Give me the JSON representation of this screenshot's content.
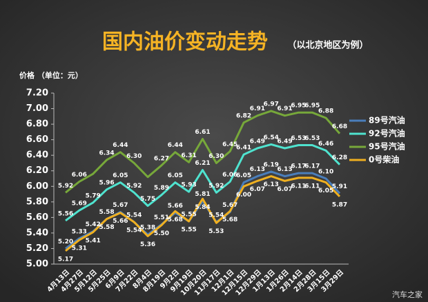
{
  "chart_data": {
    "type": "line",
    "title": "国内油价变动走势",
    "subtitle": "（以北京地区为例）",
    "y_label": "价格 （单位：元）",
    "watermark": "汽车之家",
    "categories": [
      "4月13日",
      "4月27日",
      "5月12日",
      "5月25日",
      "6月9日",
      "7月22日",
      "8月4日",
      "8月19日",
      "9月2日",
      "9月19日",
      "10月20日",
      "11月17日",
      "12月1日",
      "12月15日",
      "12月29日",
      "1月13日",
      "1月26日",
      "2月14日",
      "2月28日",
      "3月15日",
      "3月29日"
    ],
    "ylim": [
      5,
      7.2
    ],
    "yticks": [
      {
        "value": 5,
        "label": "5.00"
      },
      {
        "value": 5.2,
        "label": "5.20"
      },
      {
        "value": 5.4,
        "label": "5.40"
      },
      {
        "value": 5.6,
        "label": "5.60"
      },
      {
        "value": 5.8,
        "label": "5.80"
      },
      {
        "value": 6,
        "label": "6.00"
      },
      {
        "value": 6.2,
        "label": "6.20"
      },
      {
        "value": 6.4,
        "label": "6.40"
      },
      {
        "value": 6.6,
        "label": "6.60"
      },
      {
        "value": 6.8,
        "label": "6.80"
      },
      {
        "value": 7,
        "label": "7.00"
      },
      {
        "value": 7.2,
        "label": "7.20"
      }
    ],
    "grid": false,
    "legend": "right",
    "series": [
      {
        "name": "89号汽油",
        "color": "#4a7ebb",
        "label_pos": "above",
        "values": [
          5.2,
          5.33,
          5.42,
          5.58,
          5.67,
          5.54,
          5.38,
          5.51,
          5.66,
          5.55,
          5.81,
          5.54,
          5.67,
          6.05,
          6.13,
          6.19,
          6.13,
          6.17,
          6.17,
          6.1,
          5.91
        ],
        "value_labels": [
          "5.20",
          "5.33",
          "5.42",
          "5.58",
          "5.67",
          "5.54",
          "5.38",
          "5.51",
          "5.66",
          "5.55",
          "5.81",
          "5.54",
          "5.67",
          "6.05",
          "6.13",
          "6.19",
          "6.13",
          "6.17",
          "6.17",
          "6.10",
          "5.91"
        ]
      },
      {
        "name": "92号汽油",
        "color": "#4fe3cf",
        "label_pos": "above",
        "values": [
          5.56,
          5.69,
          5.79,
          5.96,
          6.05,
          5.92,
          5.75,
          5.89,
          6.05,
          5.93,
          6.21,
          5.92,
          6.06,
          6.41,
          6.49,
          6.54,
          6.49,
          6.53,
          6.53,
          6.46,
          6.28
        ],
        "value_labels": [
          "5.56",
          "5.69",
          "5.79",
          "5.96",
          "6.05",
          "5.92",
          "5.75",
          "5.89",
          "6.05",
          "5.93",
          "6.21",
          "5.92",
          "6.06",
          "6.41",
          "6.49",
          "6.54",
          "6.49",
          "6.53",
          "6.53",
          "6.46",
          "6.28"
        ]
      },
      {
        "name": "95号汽油",
        "color": "#77a83a",
        "label_pos": "above",
        "values": [
          5.92,
          6.06,
          6.16,
          6.34,
          6.44,
          6.3,
          6.12,
          6.27,
          6.44,
          6.31,
          6.61,
          6.3,
          6.45,
          6.82,
          6.91,
          6.97,
          6.91,
          6.95,
          6.95,
          6.88,
          6.68
        ],
        "value_labels": [
          "5.92",
          "6.06",
          null,
          "6.34",
          "6.44",
          "6.30",
          null,
          "6.27",
          "6.44",
          "6.31",
          "6.61",
          "6.30",
          "6.45",
          "6.82",
          "6.91",
          "6.97",
          "6.91",
          "6.95",
          "6.95",
          "6.88",
          "6.68"
        ]
      },
      {
        "name": "0号柴油",
        "color": "#f0b020",
        "label_pos": "below",
        "values": [
          5.17,
          5.31,
          5.41,
          5.58,
          5.66,
          5.54,
          5.36,
          5.5,
          5.68,
          5.55,
          5.84,
          5.53,
          5.68,
          6,
          6.07,
          6.13,
          6.07,
          6.11,
          6.11,
          6.05,
          5.87
        ],
        "value_labels": [
          "5.17",
          "5.31",
          "5.41",
          "5.58",
          "5.66",
          "5.54",
          "5.36",
          "5.50",
          "5.68",
          "5.55",
          "5.84",
          "5.53",
          "5.68",
          "6.00",
          "6.07",
          "6.13",
          "6.07",
          "6.11",
          "6.11",
          "6.05",
          "5.87"
        ]
      }
    ]
  }
}
